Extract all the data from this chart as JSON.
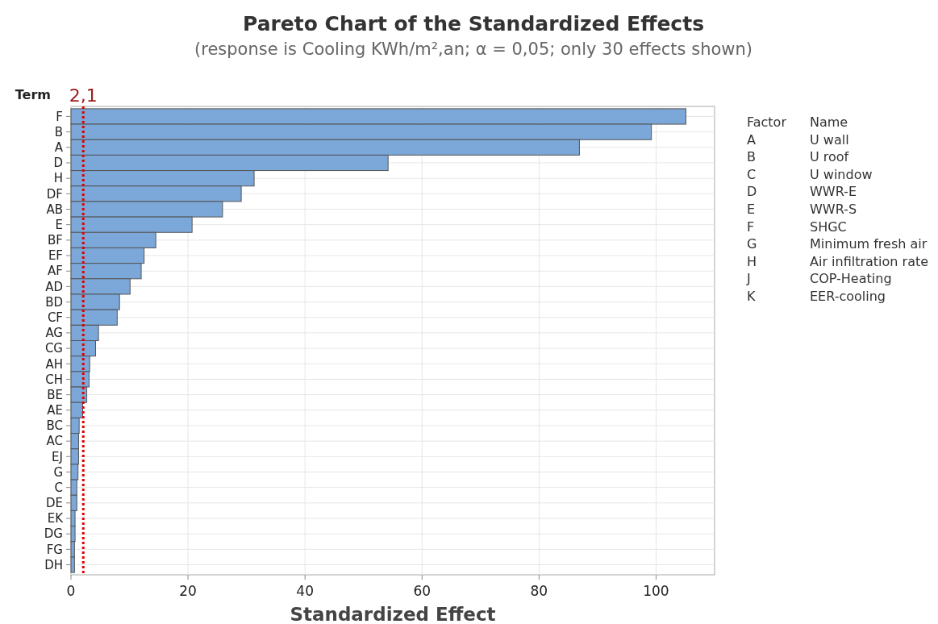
{
  "chart_data": {
    "type": "bar",
    "orientation": "horizontal",
    "title": "Pareto Chart of the Standardized Effects",
    "subtitle": "(response is Cooling KWh/m²,an; α = 0,05; only 30 effects shown)",
    "xlabel": "Standardized Effect",
    "ylabel": "Term",
    "categories": [
      "F",
      "B",
      "A",
      "D",
      "H",
      "DF",
      "AB",
      "E",
      "BF",
      "EF",
      "AF",
      "AD",
      "BD",
      "CF",
      "AG",
      "CG",
      "AH",
      "CH",
      "BE",
      "AE",
      "BC",
      "AC",
      "EJ",
      "G",
      "C",
      "DE",
      "EK",
      "DG",
      "FG",
      "DH"
    ],
    "values": [
      105.1,
      99.2,
      86.9,
      54.2,
      31.3,
      29.1,
      25.9,
      20.7,
      14.5,
      12.5,
      12.0,
      10.1,
      8.3,
      7.9,
      4.7,
      4.2,
      3.2,
      3.1,
      2.7,
      2.0,
      1.4,
      1.3,
      1.3,
      1.2,
      1.0,
      1.0,
      0.7,
      0.7,
      0.6,
      0.6
    ],
    "color": "#7ba7d9",
    "xlim": [
      0,
      110
    ],
    "xticks": [
      0,
      20,
      40,
      60,
      80,
      100
    ],
    "grid": true,
    "ref_lines": [
      {
        "axis": "x",
        "value": 2.1,
        "label": "2,1",
        "color": "#e00000",
        "line_style": "dotted"
      }
    ],
    "annotations": [
      "Factor",
      "Name",
      "A",
      "U wall",
      "B",
      "U roof",
      "C",
      "U window",
      "D",
      "WWR-E",
      "E",
      "WWR-S",
      "F",
      "SHGC",
      "G",
      "Minimum fresh air",
      "H",
      "Air infiltration rate",
      "J",
      "COP-Heating",
      "K",
      "EER-cooling"
    ]
  }
}
